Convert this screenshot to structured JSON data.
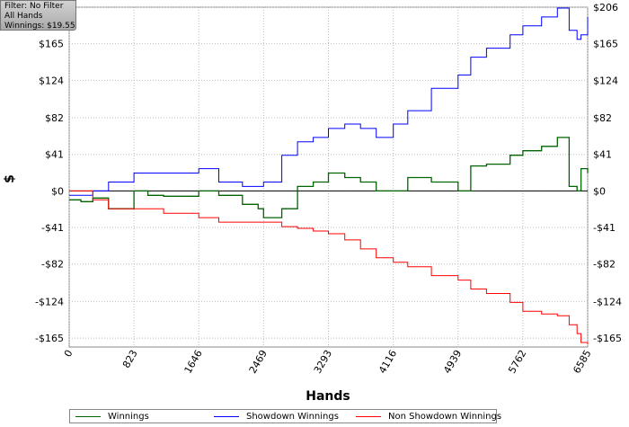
{
  "filter_box": {
    "line1": "Filter: No Filter",
    "line2": "All Hands",
    "line3": "Winnings: $19.55"
  },
  "chart_data": {
    "type": "line",
    "title": "",
    "xlabel": "Hands",
    "ylabel": "$",
    "xlim": [
      0,
      6585
    ],
    "ylim": [
      -175,
      206
    ],
    "x_ticks": [
      0,
      823,
      1646,
      2469,
      3293,
      4116,
      4939,
      5762,
      6585
    ],
    "y_ticks": [
      -165,
      -124,
      -82,
      -41,
      0,
      41,
      82,
      124,
      165,
      206
    ],
    "y_tick_labels": [
      "-$165",
      "-$124",
      "-$82",
      "-$41",
      "$0",
      "$41",
      "$82",
      "$124",
      "$165",
      "$206"
    ],
    "grid": true,
    "legend_position": "bottom",
    "series": [
      {
        "name": "Winnings",
        "color": "#006400",
        "x": [
          0,
          150,
          300,
          500,
          823,
          1000,
          1200,
          1646,
          1900,
          2200,
          2400,
          2469,
          2700,
          2900,
          3100,
          3293,
          3500,
          3700,
          3900,
          4116,
          4300,
          4600,
          4939,
          5100,
          5300,
          5600,
          5762,
          6000,
          6200,
          6350,
          6450,
          6500,
          6585
        ],
        "y": [
          -10,
          -12,
          -8,
          -20,
          0,
          -5,
          -6,
          0,
          -5,
          -15,
          -20,
          -30,
          -20,
          5,
          10,
          20,
          15,
          10,
          0,
          0,
          15,
          10,
          0,
          28,
          30,
          40,
          45,
          50,
          60,
          5,
          0,
          25,
          20
        ]
      },
      {
        "name": "Showdown Winnings",
        "color": "#0000ff",
        "x": [
          0,
          300,
          500,
          823,
          1200,
          1646,
          1900,
          2200,
          2469,
          2700,
          2900,
          3100,
          3293,
          3500,
          3700,
          3900,
          4116,
          4300,
          4600,
          4939,
          5100,
          5300,
          5600,
          5762,
          6000,
          6200,
          6350,
          6450,
          6500,
          6585
        ],
        "y": [
          -5,
          0,
          10,
          20,
          20,
          25,
          10,
          5,
          10,
          40,
          55,
          60,
          70,
          75,
          70,
          60,
          75,
          90,
          115,
          130,
          150,
          160,
          175,
          185,
          195,
          205,
          180,
          170,
          175,
          195
        ]
      },
      {
        "name": "Non Showdown Winnings",
        "color": "#ff0000",
        "x": [
          0,
          300,
          500,
          823,
          1200,
          1646,
          1900,
          2200,
          2469,
          2700,
          2900,
          3100,
          3293,
          3500,
          3700,
          3900,
          4116,
          4300,
          4600,
          4939,
          5100,
          5300,
          5600,
          5762,
          6000,
          6200,
          6350,
          6450,
          6500,
          6585
        ],
        "y": [
          0,
          -10,
          -20,
          -20,
          -25,
          -30,
          -35,
          -35,
          -35,
          -40,
          -42,
          -45,
          -48,
          -55,
          -65,
          -75,
          -80,
          -85,
          -95,
          -100,
          -110,
          -115,
          -125,
          -135,
          -138,
          -140,
          -150,
          -160,
          -170,
          -172
        ]
      }
    ]
  }
}
